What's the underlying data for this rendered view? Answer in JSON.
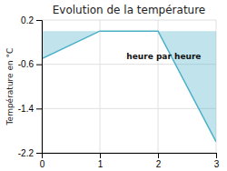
{
  "chart_data": {
    "type": "area",
    "title": "Evolution de la température",
    "ylabel": "Température en °C",
    "annotations": [
      "heure par heure"
    ],
    "x": [
      0,
      1,
      2,
      3
    ],
    "values": [
      -0.5,
      0.0,
      0.0,
      -2.0
    ],
    "color": "#4ab0c8",
    "xlim": [
      0,
      3
    ],
    "ylim": [
      -2.2,
      0.2
    ],
    "xticks": [
      0,
      1,
      2,
      3
    ],
    "yticks": [
      0.2,
      -0.6,
      -1.4,
      -2.2
    ],
    "grid": true
  }
}
